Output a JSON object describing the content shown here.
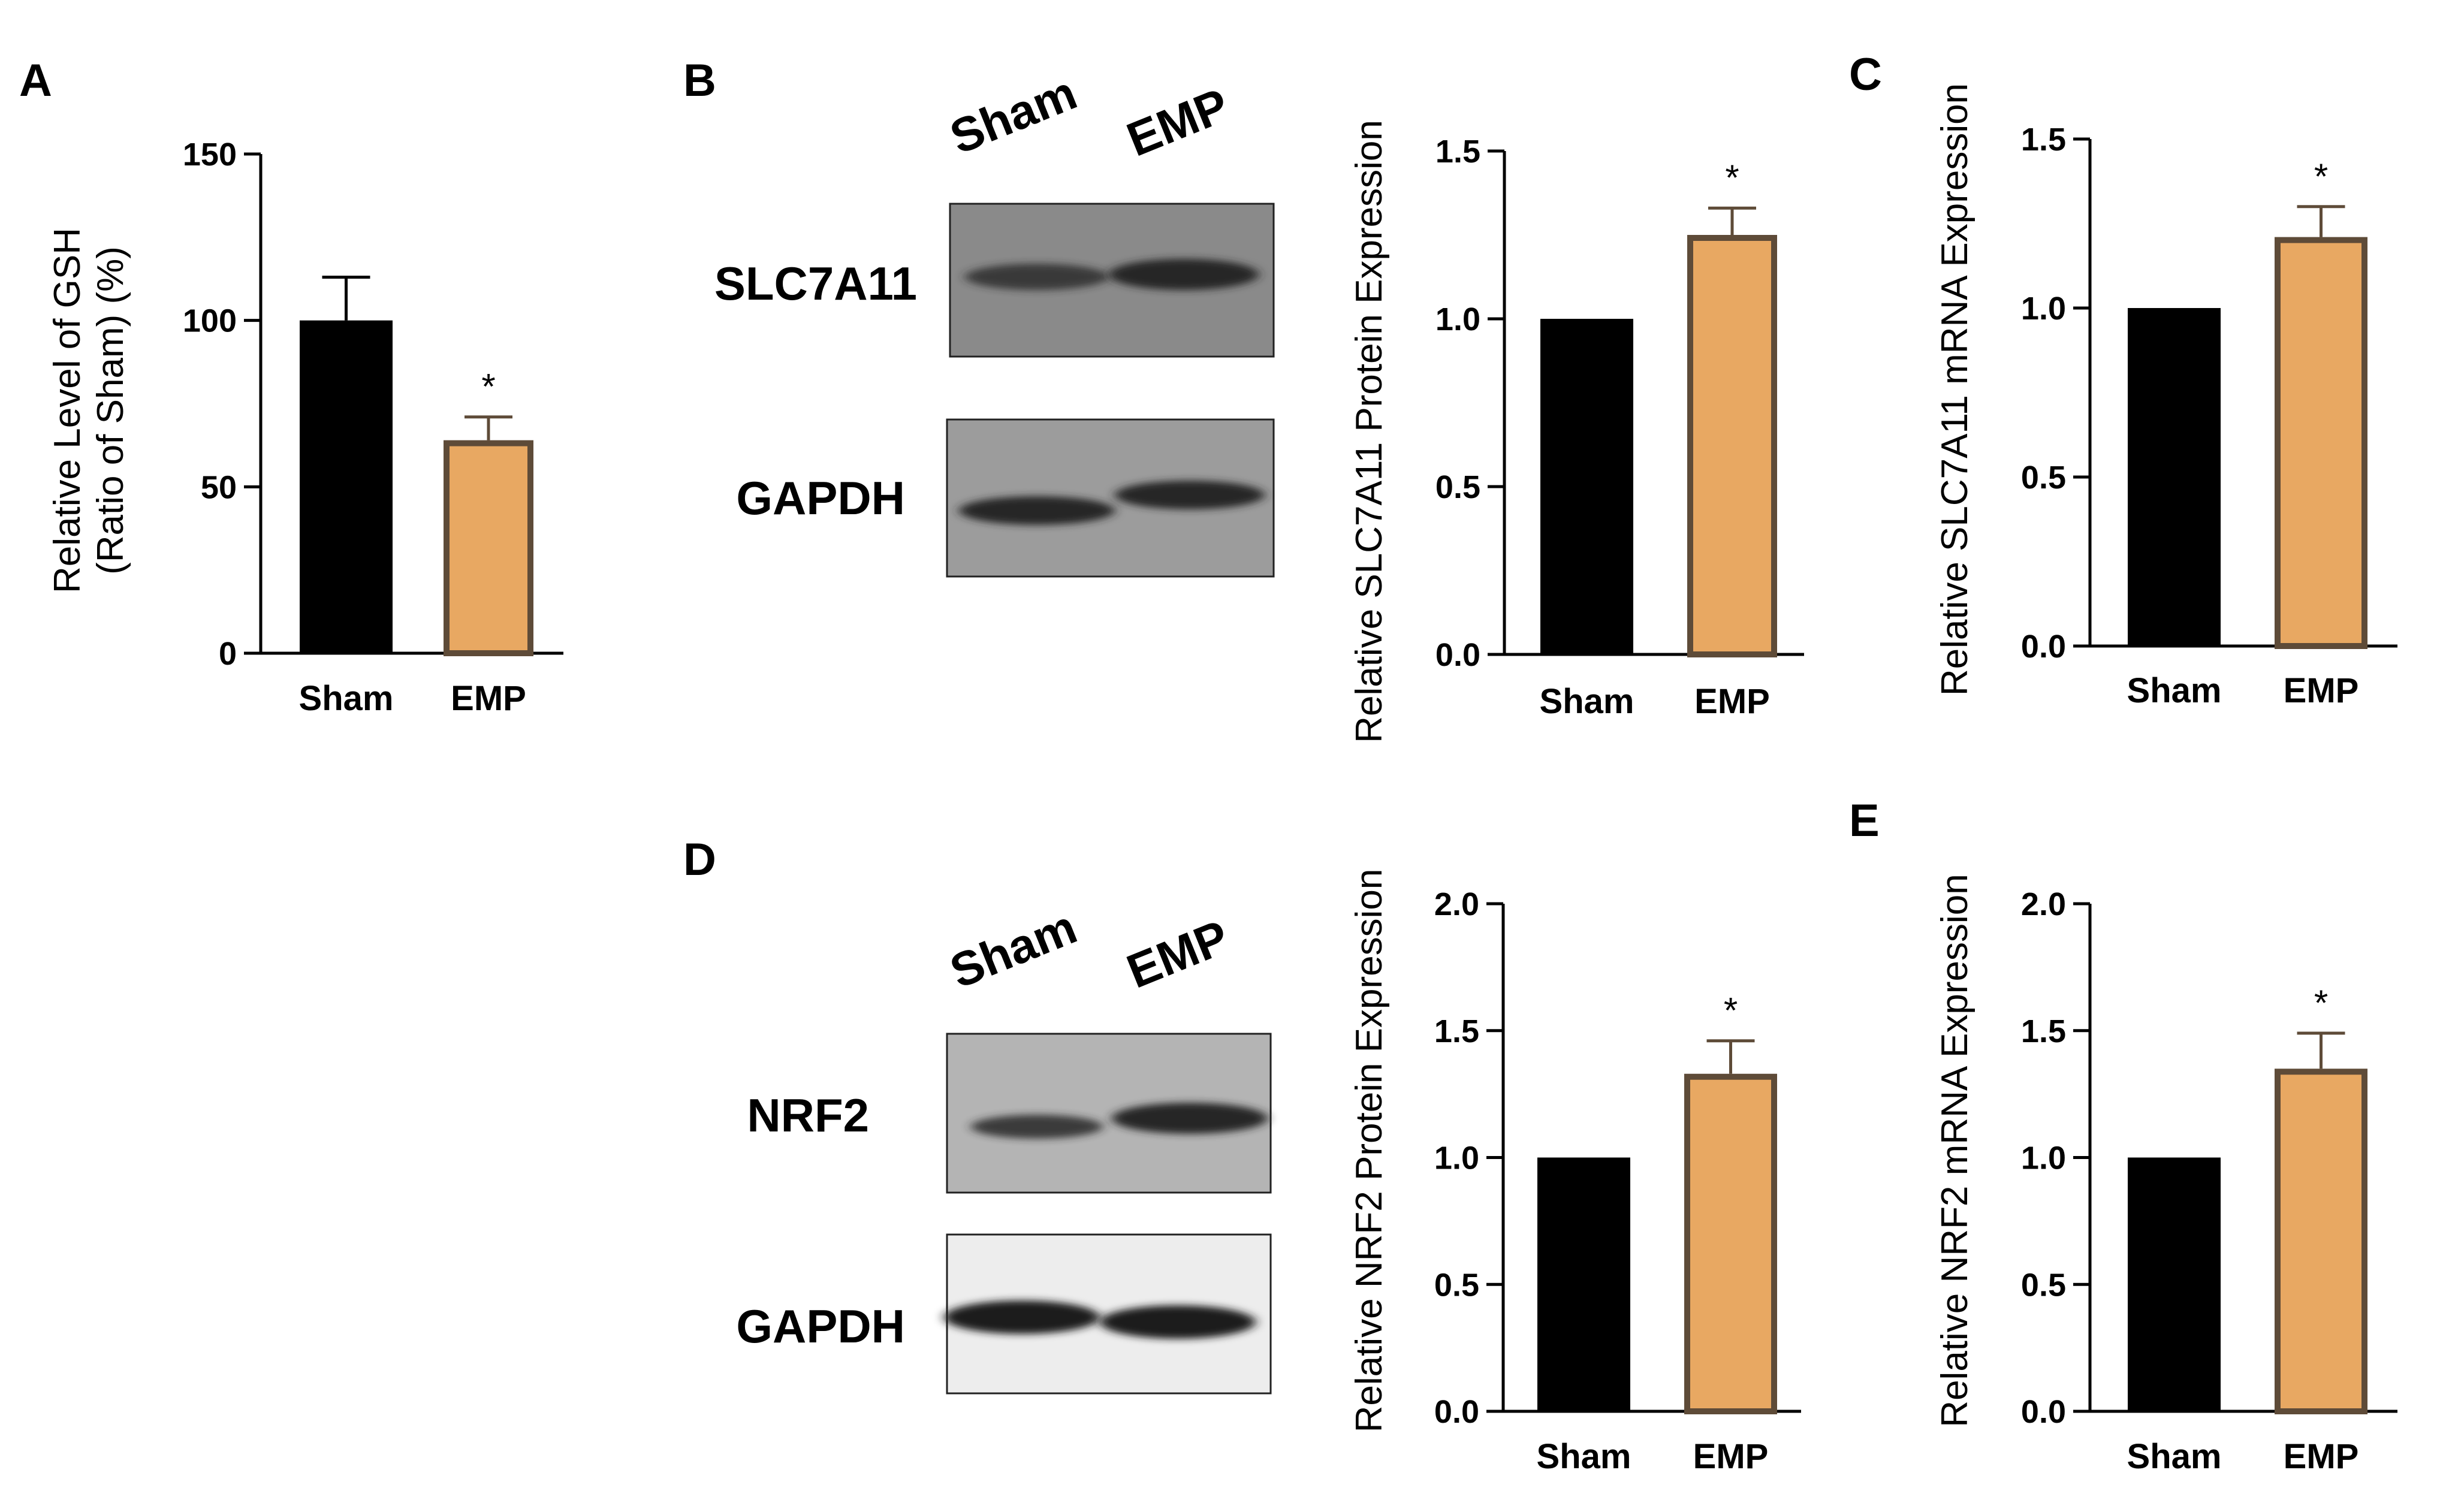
{
  "figure": {
    "panel_letters": [
      "A",
      "B",
      "C",
      "D",
      "E"
    ]
  },
  "colors": {
    "sham_bar": "#000000",
    "emp_bar": "#e8a862",
    "emp_outline": "#5e4b38",
    "axis": "#000000"
  },
  "blots": [
    {
      "id": "B",
      "lanes": [
        "Sham",
        "EMP"
      ],
      "bands": [
        {
          "label": "SLC7A11",
          "intensity": [
            0.55,
            0.75
          ]
        },
        {
          "label": "GAPDH",
          "intensity": [
            0.75,
            0.75
          ]
        }
      ]
    },
    {
      "id": "D",
      "lanes": [
        "Sham",
        "EMP"
      ],
      "bands": [
        {
          "label": "NRF2",
          "intensity": [
            0.6,
            0.95
          ]
        },
        {
          "label": "GAPDH",
          "intensity": [
            0.95,
            0.95
          ]
        }
      ]
    }
  ],
  "chart_data": [
    {
      "id": "A",
      "type": "bar",
      "title": "",
      "categories": [
        "Sham",
        "EMP"
      ],
      "values": [
        100,
        64
      ],
      "errors": [
        13,
        7
      ],
      "significance": [
        "",
        "*"
      ],
      "ylabel_lines": [
        "Relative Level of GSH",
        "(Ratio of Sham) (%)"
      ],
      "xlabel": "",
      "ylim": [
        0,
        150
      ],
      "yticks": [
        0,
        50,
        100,
        150
      ],
      "ytick_labels": [
        "0",
        "50",
        "100",
        "150"
      ]
    },
    {
      "id": "B",
      "type": "bar",
      "title": "",
      "categories": [
        "Sham",
        "EMP"
      ],
      "values": [
        1.0,
        1.25
      ],
      "errors": [
        0,
        0.08
      ],
      "significance": [
        "",
        "*"
      ],
      "ylabel_lines": [
        "Relative SLC7A11 Protein Expression"
      ],
      "xlabel": "",
      "ylim": [
        0,
        1.5
      ],
      "yticks": [
        0,
        0.5,
        1.0,
        1.5
      ],
      "ytick_labels": [
        "0.0",
        "0.5",
        "1.0",
        "1.5"
      ]
    },
    {
      "id": "C",
      "type": "bar",
      "title": "",
      "categories": [
        "Sham",
        "EMP"
      ],
      "values": [
        1.0,
        1.21
      ],
      "errors": [
        0,
        0.09
      ],
      "significance": [
        "",
        "*"
      ],
      "ylabel_lines": [
        "Relative SLC7A11 mRNA Expression"
      ],
      "xlabel": "",
      "ylim": [
        0,
        1.5
      ],
      "yticks": [
        0,
        0.5,
        1.0,
        1.5
      ],
      "ytick_labels": [
        "0.0",
        "0.5",
        "1.0",
        "1.5"
      ]
    },
    {
      "id": "D",
      "type": "bar",
      "title": "",
      "categories": [
        "Sham",
        "EMP"
      ],
      "values": [
        1.0,
        1.33
      ],
      "errors": [
        0,
        0.13
      ],
      "significance": [
        "",
        "*"
      ],
      "ylabel_lines": [
        "Relative NRF2 Protein Expression"
      ],
      "xlabel": "",
      "ylim": [
        0,
        2.0
      ],
      "yticks": [
        0,
        0.5,
        1.0,
        1.5,
        2.0
      ],
      "ytick_labels": [
        "0.0",
        "0.5",
        "1.0",
        "1.5",
        "2.0"
      ]
    },
    {
      "id": "E",
      "type": "bar",
      "title": "",
      "categories": [
        "Sham",
        "EMP"
      ],
      "values": [
        1.0,
        1.35
      ],
      "errors": [
        0,
        0.14
      ],
      "significance": [
        "",
        "*"
      ],
      "ylabel_lines": [
        "Relative NRF2 mRNA Expression"
      ],
      "xlabel": "",
      "ylim": [
        0,
        2.0
      ],
      "yticks": [
        0,
        0.5,
        1.0,
        1.5,
        2.0
      ],
      "ytick_labels": [
        "0.0",
        "0.5",
        "1.0",
        "1.5",
        "2.0"
      ]
    }
  ]
}
